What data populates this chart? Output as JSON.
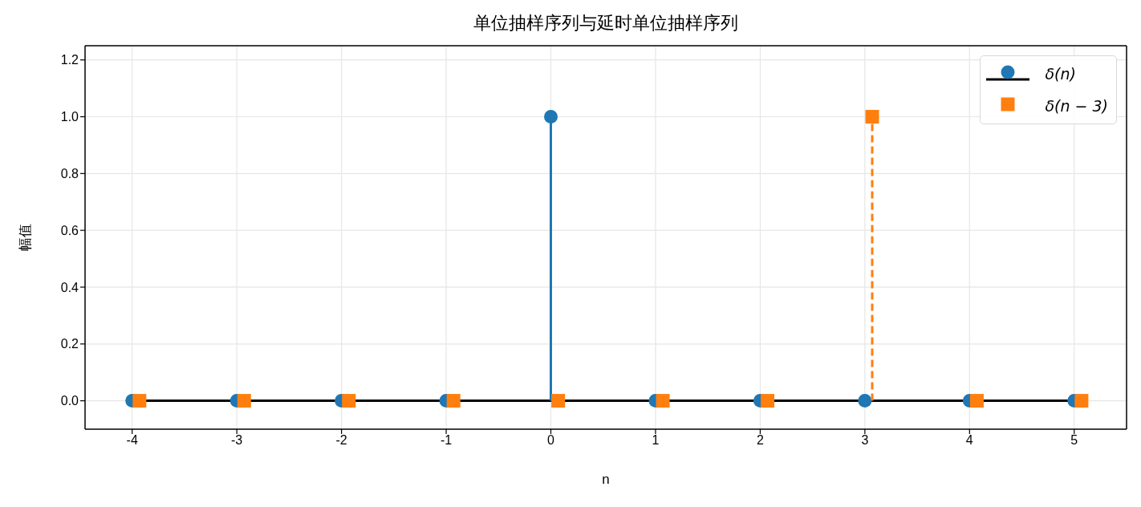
{
  "chart_data": {
    "type": "lollipop",
    "title": "单位抽样序列与延时单位抽样序列",
    "xlabel": "n",
    "ylabel": "幅值",
    "xlim": [
      -4.45,
      5.5
    ],
    "xticks": [
      -4,
      -3,
      -2,
      -1,
      0,
      1,
      2,
      3,
      4,
      5
    ],
    "ylim": [
      -0.1,
      1.25
    ],
    "yticks": [
      {
        "value": 0,
        "label": "0.0"
      },
      {
        "value": 0.2,
        "label": "0.2"
      },
      {
        "value": 0.4,
        "label": "0.4"
      },
      {
        "value": 0.6,
        "label": "0.6"
      },
      {
        "value": 0.8,
        "label": "0.8"
      },
      {
        "value": 1,
        "label": "1.0"
      },
      {
        "value": 1.2,
        "label": "1.2"
      }
    ],
    "grid": true,
    "legend": "top right",
    "ref_lines": [
      {
        "axis": "y",
        "value": 0,
        "color": "#000000"
      }
    ],
    "series": [
      {
        "name": "δ(n)",
        "color": "#1f77b4",
        "marker": "circle",
        "line_style": "solid",
        "x": [
          -4,
          -3,
          -2,
          -1,
          0,
          1,
          2,
          3,
          4,
          5
        ],
        "values": [
          0,
          0,
          0,
          0,
          1,
          0,
          0,
          0,
          0,
          0
        ]
      },
      {
        "name": "δ(n − 3)",
        "color": "#ff7f0e",
        "marker": "square",
        "line_style": "dashed",
        "x": [
          -3.93,
          -2.93,
          -1.93,
          -0.93,
          0.07,
          1.07,
          2.07,
          3.07,
          4.07,
          5.07
        ],
        "values": [
          0,
          0,
          0,
          0,
          0,
          0,
          0,
          1,
          0,
          0
        ]
      }
    ]
  }
}
